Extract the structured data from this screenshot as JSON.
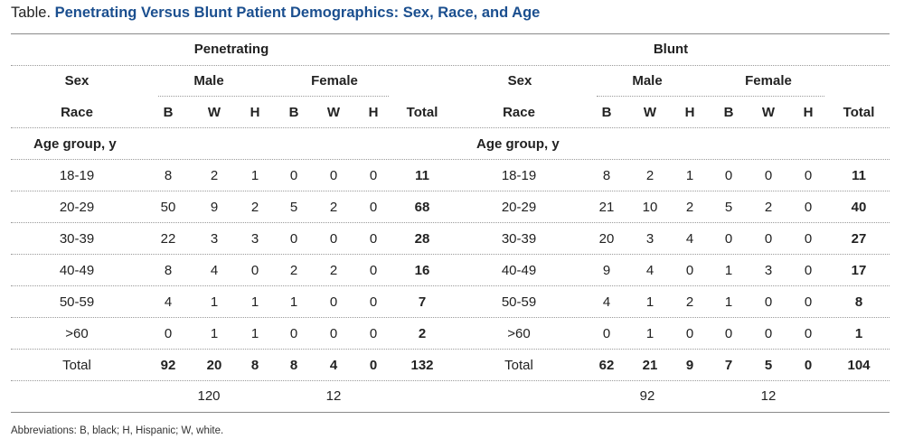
{
  "caption": {
    "label": "Table.",
    "title": "Penetrating Versus Blunt Patient Demographics: Sex, Race, and Age"
  },
  "groups": [
    "Penetrating",
    "Blunt"
  ],
  "sex_label": "Sex",
  "race_label": "Race",
  "age_label": "Age group, y",
  "male_label": "Male",
  "female_label": "Female",
  "race_codes": [
    "B",
    "W",
    "H",
    "B",
    "W",
    "H"
  ],
  "total_label": "Total",
  "rows": [
    {
      "age": "18-19",
      "pen": [
        "8",
        "2",
        "1",
        "0",
        "0",
        "0"
      ],
      "pen_total": "11",
      "blunt": [
        "8",
        "2",
        "1",
        "0",
        "0",
        "0"
      ],
      "blunt_total": "11"
    },
    {
      "age": "20-29",
      "pen": [
        "50",
        "9",
        "2",
        "5",
        "2",
        "0"
      ],
      "pen_total": "68",
      "blunt": [
        "21",
        "10",
        "2",
        "5",
        "2",
        "0"
      ],
      "blunt_total": "40"
    },
    {
      "age": "30-39",
      "pen": [
        "22",
        "3",
        "3",
        "0",
        "0",
        "0"
      ],
      "pen_total": "28",
      "blunt": [
        "20",
        "3",
        "4",
        "0",
        "0",
        "0"
      ],
      "blunt_total": "27"
    },
    {
      "age": "40-49",
      "pen": [
        "8",
        "4",
        "0",
        "2",
        "2",
        "0"
      ],
      "pen_total": "16",
      "blunt": [
        "9",
        "4",
        "0",
        "1",
        "3",
        "0"
      ],
      "blunt_total": "17"
    },
    {
      "age": "50-59",
      "pen": [
        "4",
        "1",
        "1",
        "1",
        "0",
        "0"
      ],
      "pen_total": "7",
      "blunt": [
        "4",
        "1",
        "2",
        "1",
        "0",
        "0"
      ],
      "blunt_total": "8"
    },
    {
      "age": ">60",
      "pen": [
        "0",
        "1",
        "1",
        "0",
        "0",
        "0"
      ],
      "pen_total": "2",
      "blunt": [
        "0",
        "1",
        "0",
        "0",
        "0",
        "0"
      ],
      "blunt_total": "1"
    }
  ],
  "totals": {
    "label": "Total",
    "pen": [
      "92",
      "20",
      "8",
      "8",
      "4",
      "0"
    ],
    "pen_total": "132",
    "blunt": [
      "62",
      "21",
      "9",
      "7",
      "5",
      "0"
    ],
    "blunt_total": "104"
  },
  "sex_totals": {
    "pen_male": "120",
    "pen_female": "12",
    "blunt_male": "92",
    "blunt_female": "12"
  },
  "footnote": "Abbreviations: B, black; H, Hispanic; W, white."
}
